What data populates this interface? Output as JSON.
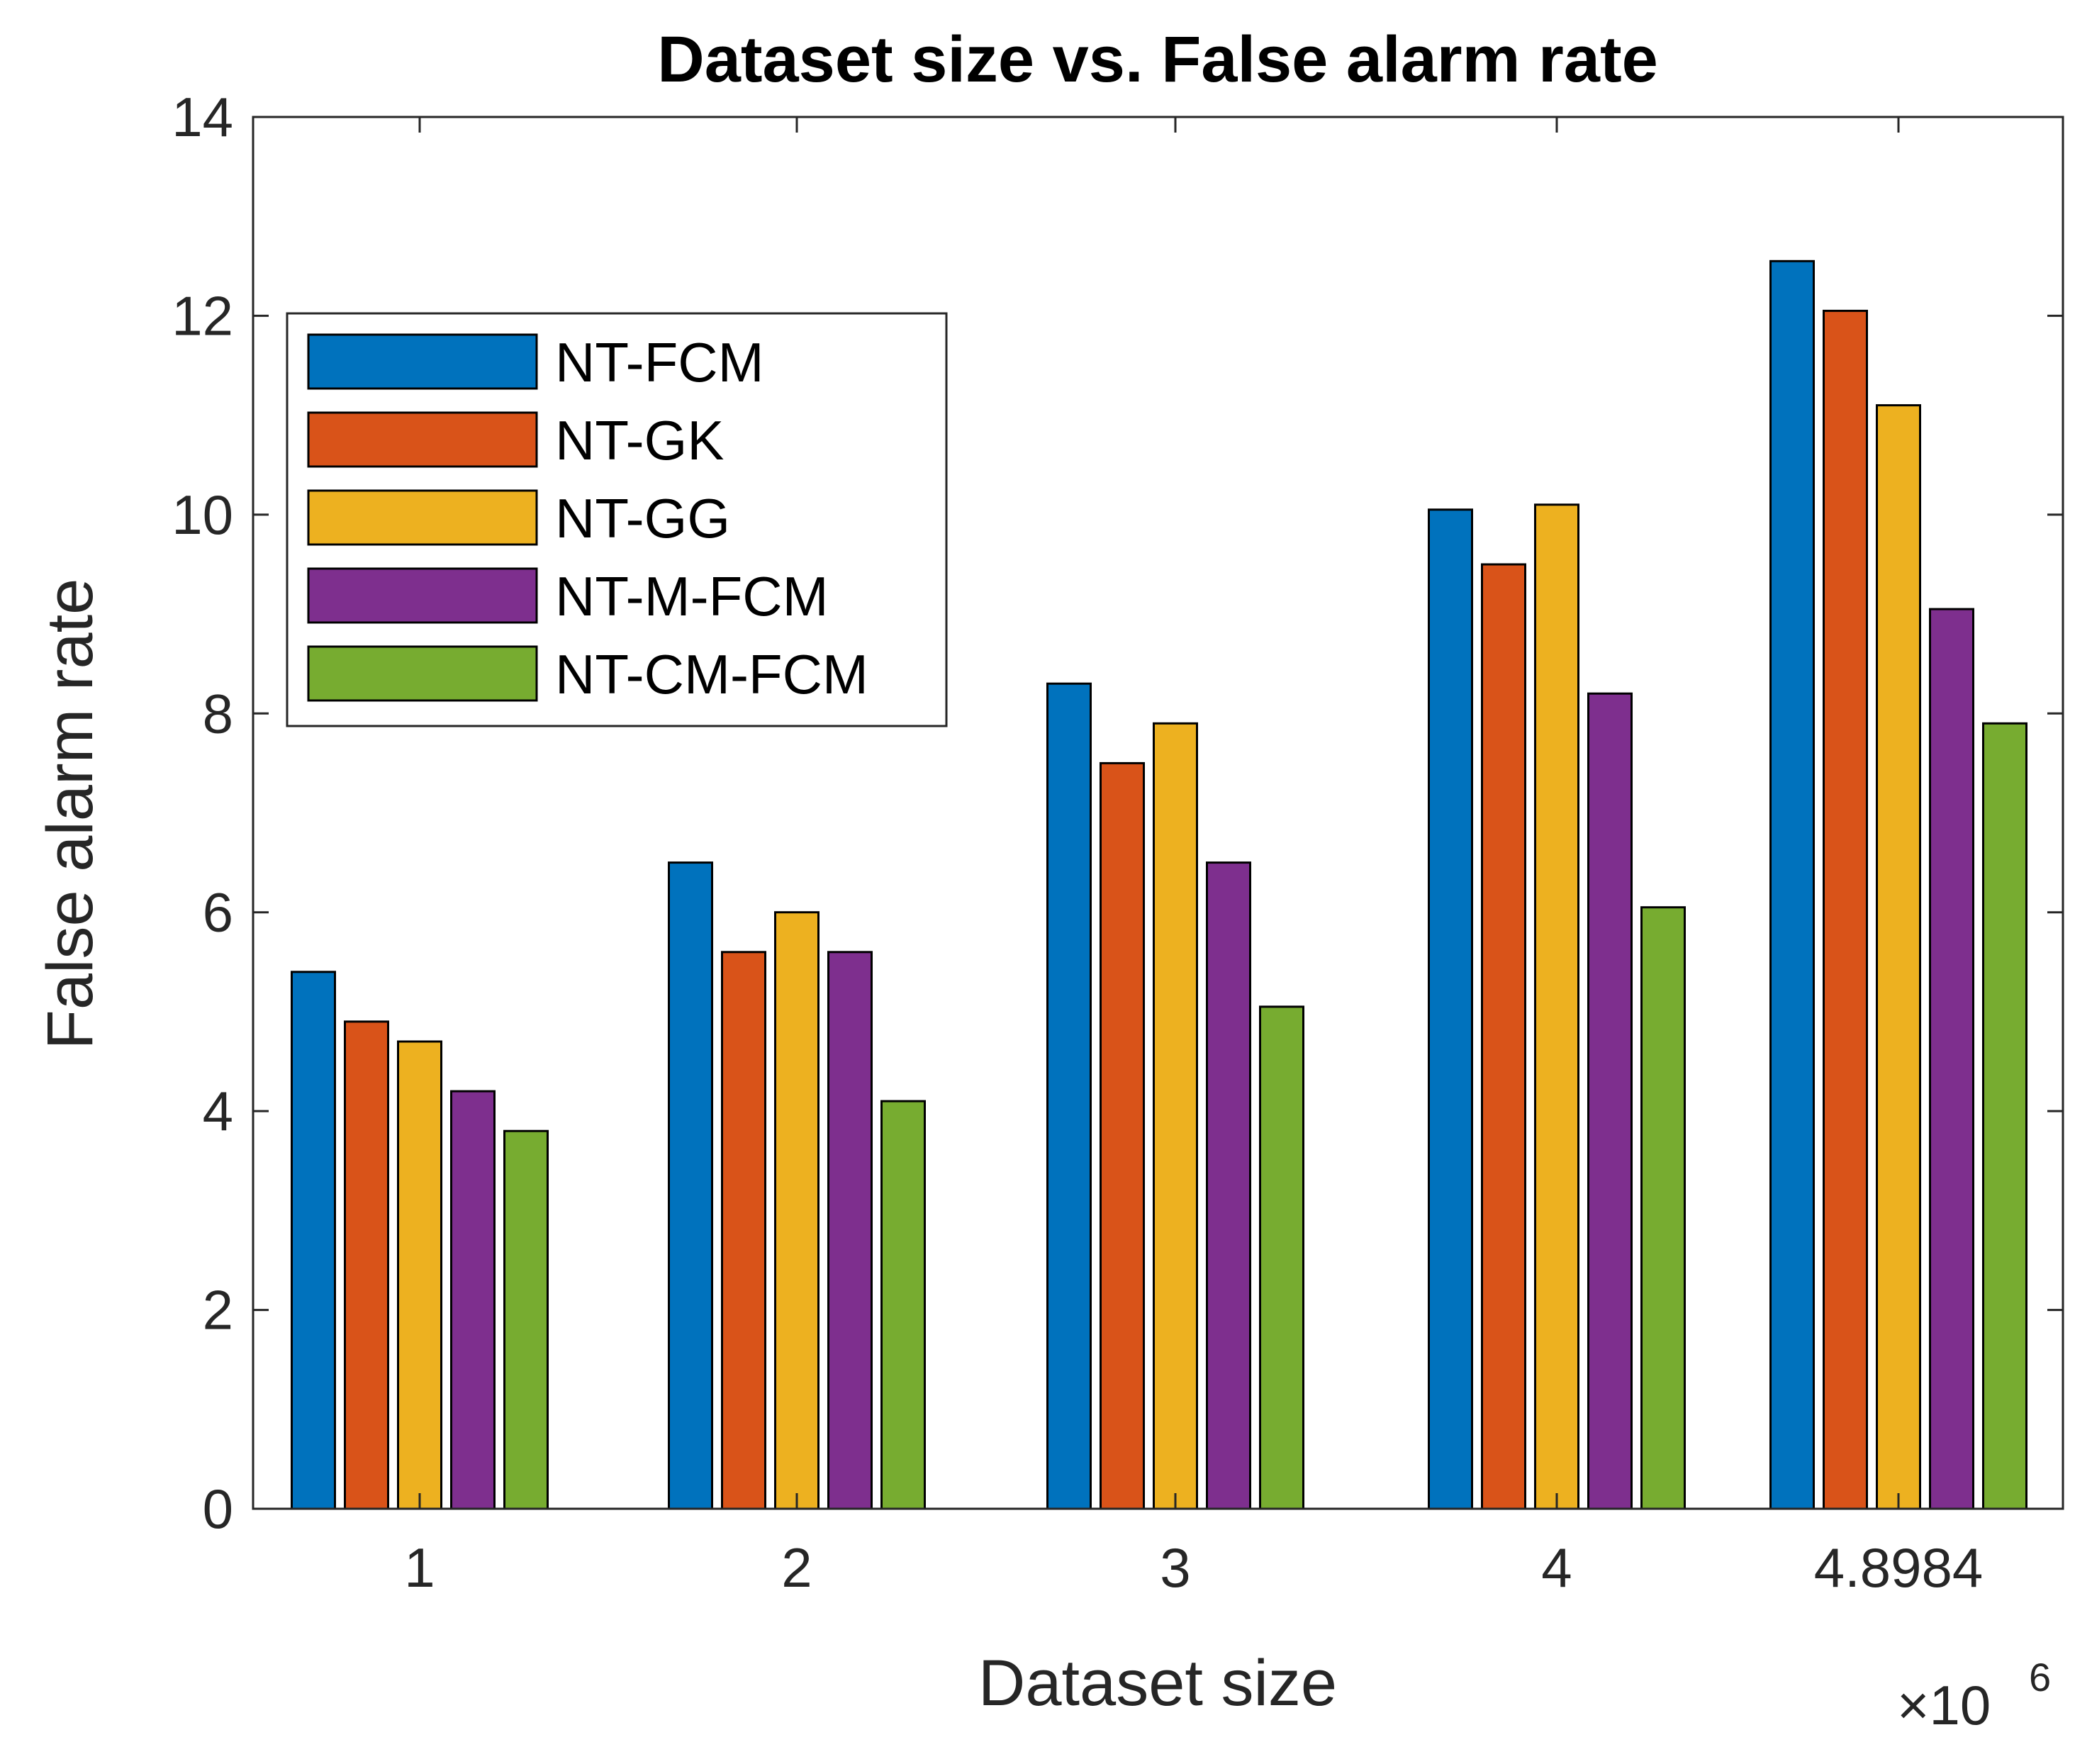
{
  "chart_data": {
    "type": "bar",
    "title": "Dataset size vs. False alarm rate",
    "xlabel": "Dataset size",
    "ylabel": "False alarm rate",
    "x_multiplier": "×10",
    "x_multiplier_exponent": "6",
    "categories": [
      "1",
      "2",
      "3",
      "4",
      "4.8984"
    ],
    "ylim": [
      0,
      14
    ],
    "yticks": [
      0,
      2,
      4,
      6,
      8,
      10,
      12,
      14
    ],
    "legend_position": "upper-left",
    "grid": false,
    "series": [
      {
        "name": "NT-FCM",
        "color": "#0072BD",
        "values": [
          5.4,
          6.5,
          8.3,
          10.05,
          12.55
        ]
      },
      {
        "name": "NT-GK",
        "color": "#D95319",
        "values": [
          4.9,
          5.6,
          7.5,
          9.5,
          12.05
        ]
      },
      {
        "name": "NT-GG",
        "color": "#EDB120",
        "values": [
          4.7,
          6.0,
          7.9,
          10.1,
          11.1
        ]
      },
      {
        "name": "NT-M-FCM",
        "color": "#7E2F8E",
        "values": [
          4.2,
          5.6,
          6.5,
          8.2,
          9.05
        ]
      },
      {
        "name": "NT-CM-FCM",
        "color": "#77AC30",
        "values": [
          3.8,
          4.1,
          5.05,
          6.05,
          7.9
        ]
      }
    ]
  }
}
